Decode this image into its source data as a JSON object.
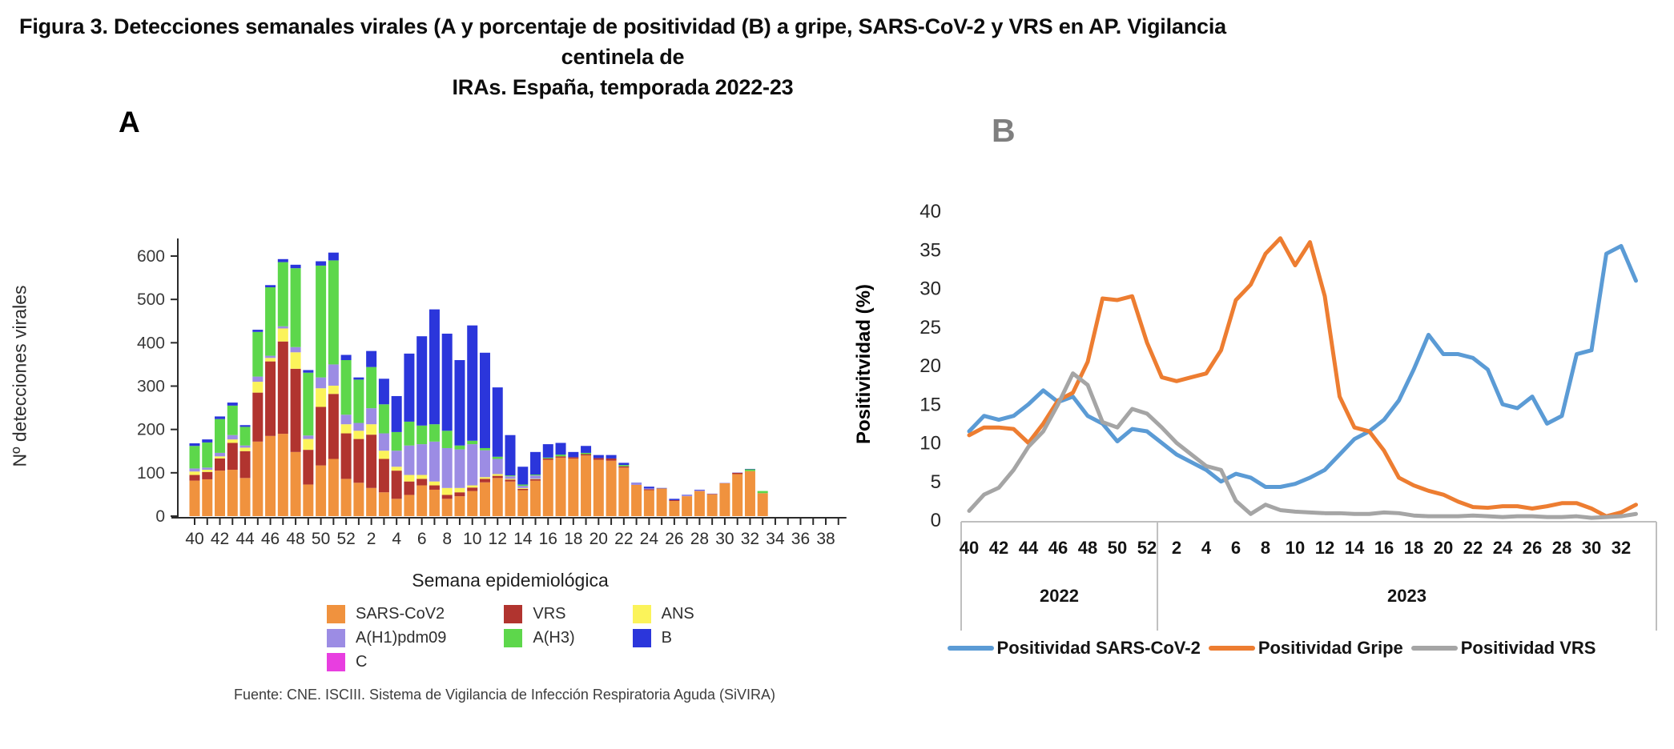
{
  "figure_title": {
    "line1": "Figura 3. Detecciones semanales virales (A y porcentaje de positividad (B) a gripe, SARS-CoV-2 y VRS en AP. Vigilancia centinela de",
    "line2": "IRAs.  España, temporada 2022-23"
  },
  "panel_a": {
    "label": "A",
    "y_axis_title": "Nº detecciones virales",
    "x_axis_title": "Semana epidemiológica",
    "footer": "Fuente: CNE. ISCIII. Sistema de Vigilancia de Infección Respiratoria Aguda (SiVIRA)",
    "legend_columns": [
      [
        {
          "label": "SARS-CoV2",
          "color": "#F0923E"
        },
        {
          "label": "A(H1)pdm09",
          "color": "#9C8CE4"
        },
        {
          "label": "C",
          "color": "#E83EE0"
        }
      ],
      [
        {
          "label": "VRS",
          "color": "#B1342F"
        },
        {
          "label": "A(H3)",
          "color": "#5DD74B"
        }
      ],
      [
        {
          "label": "ANS",
          "color": "#FBF35A"
        },
        {
          "label": "B",
          "color": "#2B36DB"
        }
      ]
    ]
  },
  "panel_b": {
    "label": "B",
    "y_axis_title": "Positivitvidad (%)",
    "legend": [
      {
        "label": "Positividad SARS-CoV-2",
        "color": "#5B9BD5"
      },
      {
        "label": "Positividad Gripe",
        "color": "#ED7D31"
      },
      {
        "label": "Positividad VRS",
        "color": "#A5A5A5"
      }
    ]
  },
  "chart_data": [
    {
      "type": "bar",
      "stacked": true,
      "panel": "A",
      "title": "Detecciones semanales virales",
      "xlabel": "Semana epidemiológica",
      "ylabel": "Nº detecciones virales",
      "ylim": [
        0,
        600
      ],
      "yticks": [
        0,
        100,
        200,
        300,
        400,
        500,
        600
      ],
      "categories": [
        "40",
        "41",
        "42",
        "43",
        "44",
        "45",
        "46",
        "47",
        "48",
        "49",
        "50",
        "51",
        "52",
        "1",
        "2",
        "3",
        "4",
        "5",
        "6",
        "7",
        "8",
        "9",
        "10",
        "11",
        "12",
        "13",
        "14",
        "15",
        "16",
        "17",
        "18",
        "19",
        "20",
        "21",
        "22",
        "23",
        "24",
        "25",
        "26",
        "27",
        "28",
        "29",
        "30",
        "31",
        "32",
        "33"
      ],
      "x_axis_tick_labels": [
        "40",
        "42",
        "44",
        "46",
        "48",
        "50",
        "52",
        "2",
        "4",
        "6",
        "8",
        "10",
        "12",
        "14",
        "16",
        "18",
        "20",
        "22",
        "24",
        "26",
        "28",
        "30",
        "32",
        "34",
        "36",
        "38"
      ],
      "x_axis_total_slots": 52,
      "grid": false,
      "series": [
        {
          "name": "SARS-CoV2",
          "color": "#F0923E",
          "values": [
            82,
            85,
            105,
            107,
            88,
            172,
            185,
            190,
            148,
            73,
            117,
            132,
            86,
            77,
            65,
            55,
            40,
            49,
            71,
            61,
            40,
            46,
            58,
            78,
            88,
            80,
            60,
            82,
            130,
            135,
            133,
            140,
            130,
            128,
            112,
            72,
            60,
            64,
            35,
            46,
            58,
            50,
            76,
            97,
            104,
            53
          ]
        },
        {
          "name": "VRS",
          "color": "#B1342F",
          "values": [
            13,
            17,
            28,
            62,
            62,
            113,
            172,
            213,
            192,
            80,
            135,
            150,
            105,
            101,
            123,
            77,
            65,
            31,
            15,
            10,
            9,
            9,
            8,
            8,
            5,
            4,
            3,
            3,
            3,
            3,
            3,
            3,
            4,
            5,
            3,
            0,
            2,
            0,
            2,
            0,
            0,
            1,
            0,
            3,
            0,
            0
          ]
        },
        {
          "name": "ANS",
          "color": "#FBF35A",
          "values": [
            8,
            5,
            5,
            8,
            8,
            25,
            8,
            30,
            38,
            25,
            43,
            19,
            21,
            19,
            24,
            19,
            9,
            15,
            9,
            9,
            16,
            10,
            5,
            4,
            4,
            2,
            2,
            1,
            0,
            0,
            0,
            0,
            0,
            0,
            0,
            0,
            0,
            0,
            0,
            0,
            0,
            0,
            0,
            0,
            0,
            0
          ]
        },
        {
          "name": "A(H1)pdm09",
          "color": "#9C8CE4",
          "values": [
            7,
            5,
            8,
            10,
            5,
            12,
            5,
            5,
            12,
            8,
            25,
            49,
            22,
            18,
            37,
            40,
            37,
            68,
            71,
            92,
            92,
            89,
            95,
            62,
            35,
            6,
            5,
            8,
            0,
            0,
            0,
            0,
            0,
            0,
            0,
            4,
            2,
            0,
            0,
            2,
            2,
            1,
            1,
            1,
            0,
            0
          ]
        },
        {
          "name": "C",
          "color": "#E83EE0",
          "values": [
            0,
            0,
            0,
            0,
            0,
            0,
            0,
            0,
            0,
            0,
            0,
            0,
            0,
            0,
            0,
            0,
            0,
            0,
            0,
            0,
            0,
            0,
            0,
            0,
            0,
            0,
            0,
            0,
            0,
            0,
            0,
            0,
            0,
            0,
            0,
            0,
            0,
            0,
            0,
            0,
            0,
            0,
            0,
            0,
            0,
            0
          ]
        },
        {
          "name": "A(H3)",
          "color": "#5DD74B",
          "values": [
            52,
            58,
            78,
            68,
            43,
            103,
            158,
            148,
            182,
            145,
            258,
            240,
            126,
            100,
            95,
            67,
            43,
            55,
            43,
            40,
            40,
            9,
            8,
            5,
            5,
            2,
            3,
            2,
            2,
            4,
            0,
            3,
            0,
            0,
            3,
            0,
            0,
            0,
            0,
            0,
            0,
            0,
            0,
            0,
            4,
            5
          ]
        },
        {
          "name": "B",
          "color": "#2B36DB",
          "values": [
            6,
            7,
            6,
            7,
            4,
            5,
            5,
            7,
            8,
            6,
            10,
            18,
            12,
            5,
            37,
            59,
            83,
            157,
            206,
            265,
            224,
            197,
            266,
            220,
            160,
            93,
            41,
            52,
            31,
            27,
            12,
            16,
            7,
            8,
            5,
            1,
            4,
            1,
            3,
            1,
            1,
            0,
            0,
            0,
            1,
            0
          ]
        }
      ]
    },
    {
      "type": "line",
      "panel": "B",
      "title": "Porcentaje de positividad",
      "ylabel": "Positivitvidad (%)",
      "ylim": [
        0,
        40
      ],
      "yticks": [
        0,
        5,
        10,
        15,
        20,
        25,
        30,
        35,
        40
      ],
      "categories": [
        "40",
        "41",
        "42",
        "43",
        "44",
        "45",
        "46",
        "47",
        "48",
        "49",
        "50",
        "51",
        "52",
        "1",
        "2",
        "3",
        "4",
        "5",
        "6",
        "7",
        "8",
        "9",
        "10",
        "11",
        "12",
        "13",
        "14",
        "15",
        "16",
        "17",
        "18",
        "19",
        "20",
        "21",
        "22",
        "23",
        "24",
        "25",
        "26",
        "27",
        "28",
        "29",
        "30",
        "31",
        "32",
        "33"
      ],
      "x_axis_tick_labels": [
        "40",
        "42",
        "44",
        "46",
        "48",
        "50",
        "52",
        "2",
        "4",
        "6",
        "8",
        "10",
        "12",
        "14",
        "16",
        "18",
        "20",
        "22",
        "24",
        "26",
        "28",
        "30",
        "32"
      ],
      "year_bands": [
        {
          "label": "2022",
          "weeks": 13
        },
        {
          "label": "2023",
          "weeks": 33
        }
      ],
      "grid": false,
      "legend_position": "bottom",
      "series": [
        {
          "name": "Positividad SARS-CoV-2",
          "color": "#5B9BD5",
          "values": [
            11.5,
            13.5,
            13,
            13.5,
            15,
            16.8,
            15.3,
            16,
            13.5,
            12.5,
            10.2,
            11.8,
            11.5,
            10,
            8.5,
            7.5,
            6.5,
            5,
            6,
            5.5,
            4.3,
            4.3,
            4.7,
            5.5,
            6.5,
            8.5,
            10.5,
            11.5,
            13,
            15.5,
            19.5,
            24,
            21.5,
            21.5,
            21,
            19.5,
            15,
            14.5,
            16,
            12.5,
            13.5,
            21.5,
            22,
            34.5,
            35.5,
            31
          ]
        },
        {
          "name": "Positividad Gripe",
          "color": "#ED7D31",
          "values": [
            11,
            12,
            12,
            11.8,
            10,
            12.5,
            15.5,
            16.5,
            20.5,
            28.7,
            28.5,
            29,
            23,
            18.5,
            18,
            18.5,
            19,
            22,
            28.5,
            30.5,
            34.5,
            36.5,
            33,
            36,
            29,
            16,
            12,
            11.5,
            9,
            5.5,
            4.5,
            3.8,
            3.3,
            2.4,
            1.7,
            1.6,
            1.8,
            1.8,
            1.5,
            1.8,
            2.2,
            2.2,
            1.5,
            0.5,
            1,
            2
          ]
        },
        {
          "name": "Positividad VRS",
          "color": "#A5A5A5",
          "values": [
            1.2,
            3.3,
            4.2,
            6.5,
            9.5,
            11.5,
            15,
            19,
            17.5,
            12.7,
            12,
            14.4,
            13.8,
            12,
            10,
            8.5,
            7,
            6.5,
            2.5,
            0.8,
            2,
            1.3,
            1.1,
            1,
            0.9,
            0.9,
            0.8,
            0.8,
            1,
            0.9,
            0.6,
            0.5,
            0.5,
            0.5,
            0.6,
            0.5,
            0.4,
            0.5,
            0.5,
            0.4,
            0.4,
            0.5,
            0.3,
            0.4,
            0.5,
            0.8
          ]
        }
      ]
    }
  ],
  "colors": {
    "band_line": "#BFBFBF",
    "axis_line": "#2b2b2b",
    "panel_b_label": "#7f7f7f"
  }
}
